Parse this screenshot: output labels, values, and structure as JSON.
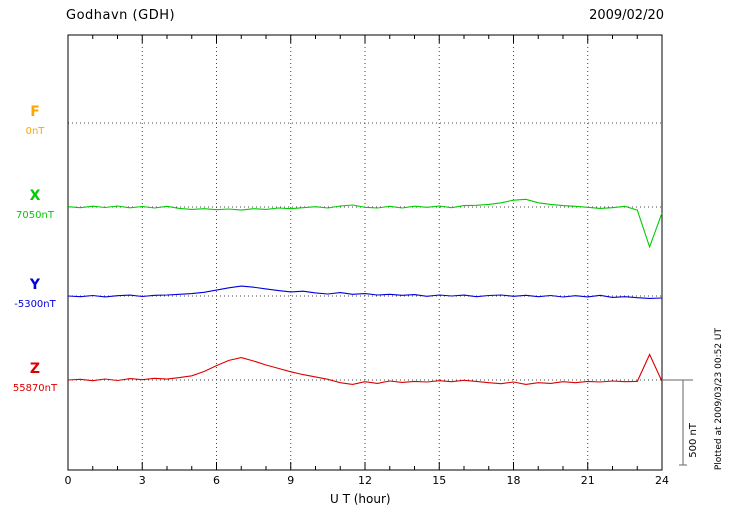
{
  "header": {
    "title": "Godhavn (GDH)",
    "date": "2009/02/20"
  },
  "chart_data": {
    "type": "line",
    "title": "Godhavn (GDH)",
    "subtitle": "2009/02/20",
    "xlabel": "U T (hour)",
    "xlim": [
      0,
      24
    ],
    "xticks": [
      0,
      3,
      6,
      9,
      12,
      15,
      18,
      21,
      24
    ],
    "x_minor_step": 1,
    "grid": {
      "vertical_dotted_every_hours": 3,
      "horizontal_dotted_at_baselines": true
    },
    "legend_position": "left-baselines",
    "scale_bar": {
      "label": "500 nT",
      "nT": 500
    },
    "plotted_at": "Plotted at 2009/03/23 00:52 UT",
    "x_start": 0,
    "x_step": 0.5,
    "series": [
      {
        "name": "F",
        "baseline_label": "0nT",
        "baseline_value_nT": 0,
        "color": "#FFA500",
        "y_offsets_nT": []
      },
      {
        "name": "X",
        "baseline_label": "7050nT",
        "baseline_value_nT": 7050,
        "color": "#00CC00",
        "y_offsets_nT": [
          2,
          -4,
          5,
          -3,
          6,
          -5,
          3,
          -6,
          4,
          -8,
          -14,
          -10,
          -16,
          -12,
          -18,
          -10,
          -14,
          -6,
          -10,
          -4,
          2,
          -6,
          6,
          12,
          -2,
          -6,
          4,
          -6,
          5,
          -2,
          6,
          -4,
          8,
          10,
          15,
          25,
          40,
          45,
          25,
          15,
          8,
          4,
          -2,
          -8,
          -4,
          4,
          -18,
          -235,
          -35
        ]
      },
      {
        "name": "Y",
        "baseline_label": "-5300nT",
        "baseline_value_nT": -5300,
        "color": "#0000DD",
        "y_offsets_nT": [
          0,
          -4,
          3,
          -5,
          2,
          5,
          -3,
          4,
          6,
          10,
          14,
          22,
          35,
          48,
          58,
          52,
          42,
          32,
          24,
          28,
          18,
          12,
          20,
          10,
          14,
          6,
          10,
          4,
          8,
          -2,
          6,
          0,
          5,
          -4,
          3,
          6,
          -2,
          4,
          -4,
          3,
          -6,
          2,
          -5,
          4,
          -8,
          -4,
          -10,
          -14,
          -12
        ]
      },
      {
        "name": "Z",
        "baseline_label": "55870nT",
        "baseline_value_nT": 55870,
        "color": "#DD0000",
        "y_offsets_nT": [
          0,
          4,
          -4,
          6,
          -3,
          8,
          2,
          10,
          5,
          14,
          25,
          50,
          85,
          115,
          132,
          112,
          88,
          68,
          48,
          32,
          18,
          4,
          -16,
          -26,
          -10,
          -20,
          -6,
          -14,
          -8,
          -12,
          -4,
          -10,
          -2,
          -8,
          -16,
          -22,
          -12,
          -26,
          -16,
          -20,
          -10,
          -16,
          -8,
          -12,
          -6,
          -10,
          -8,
          150,
          -8
        ]
      }
    ]
  }
}
